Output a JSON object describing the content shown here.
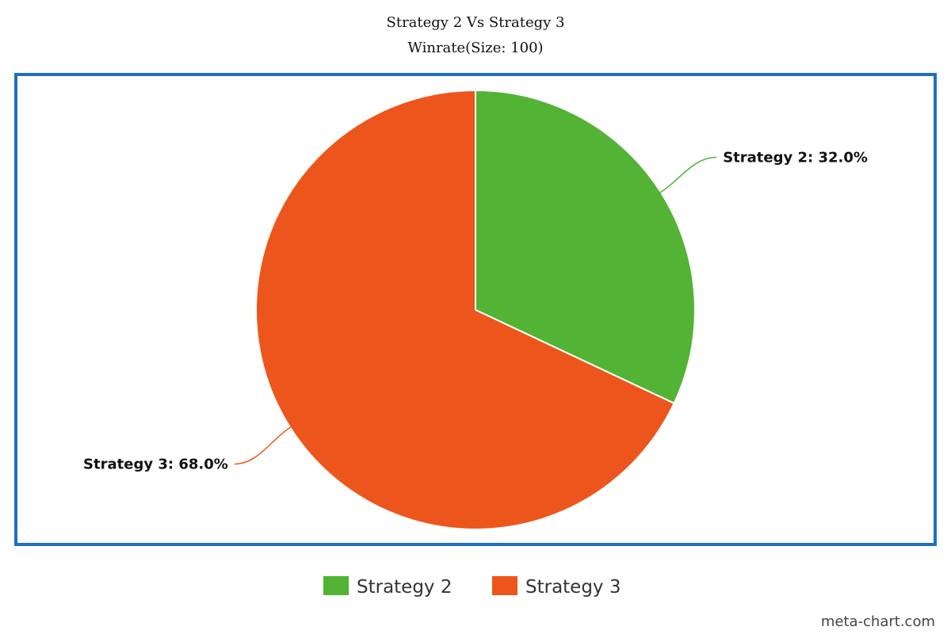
{
  "chart_data": {
    "type": "pie",
    "title": "Strategy 2 Vs Strategy 3",
    "subtitle": "Winrate(Size: 100)",
    "slices": [
      {
        "name": "Strategy 2",
        "value": 32.0,
        "label": "Strategy 2: 32.0%",
        "color": "#52b335"
      },
      {
        "name": "Strategy 3",
        "value": 68.0,
        "label": "Strategy 3: 68.0%",
        "color": "#ec561c"
      }
    ],
    "legend": {
      "placement": "bottom-center",
      "entries": [
        "Strategy 2",
        "Strategy 3"
      ]
    },
    "frame_color": "#1f70c1"
  },
  "watermark": "meta-chart.com"
}
